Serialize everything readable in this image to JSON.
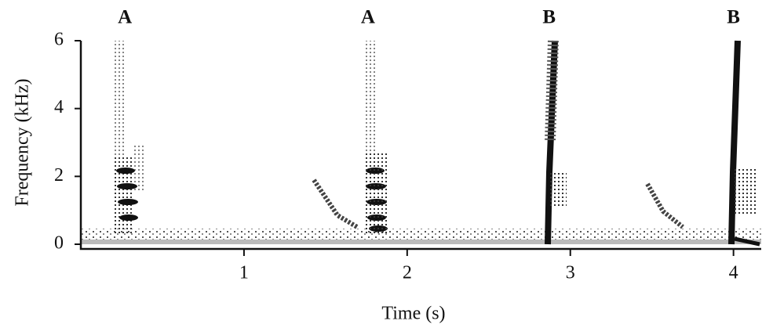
{
  "chart_data": {
    "type": "spectrogram",
    "xlabel": "Time (s)",
    "ylabel": "Frequency (kHz)",
    "xlim": [
      0,
      4.17
    ],
    "xticks": [
      1,
      2,
      3,
      4
    ],
    "ylim": [
      0,
      6
    ],
    "yticks": [
      0,
      2,
      4,
      6
    ],
    "annotations": [
      {
        "text": "A",
        "x": 0.27
      },
      {
        "text": "A",
        "x": 1.76
      },
      {
        "text": "B",
        "x": 2.87
      },
      {
        "text": "B",
        "x": 4.0
      }
    ]
  }
}
